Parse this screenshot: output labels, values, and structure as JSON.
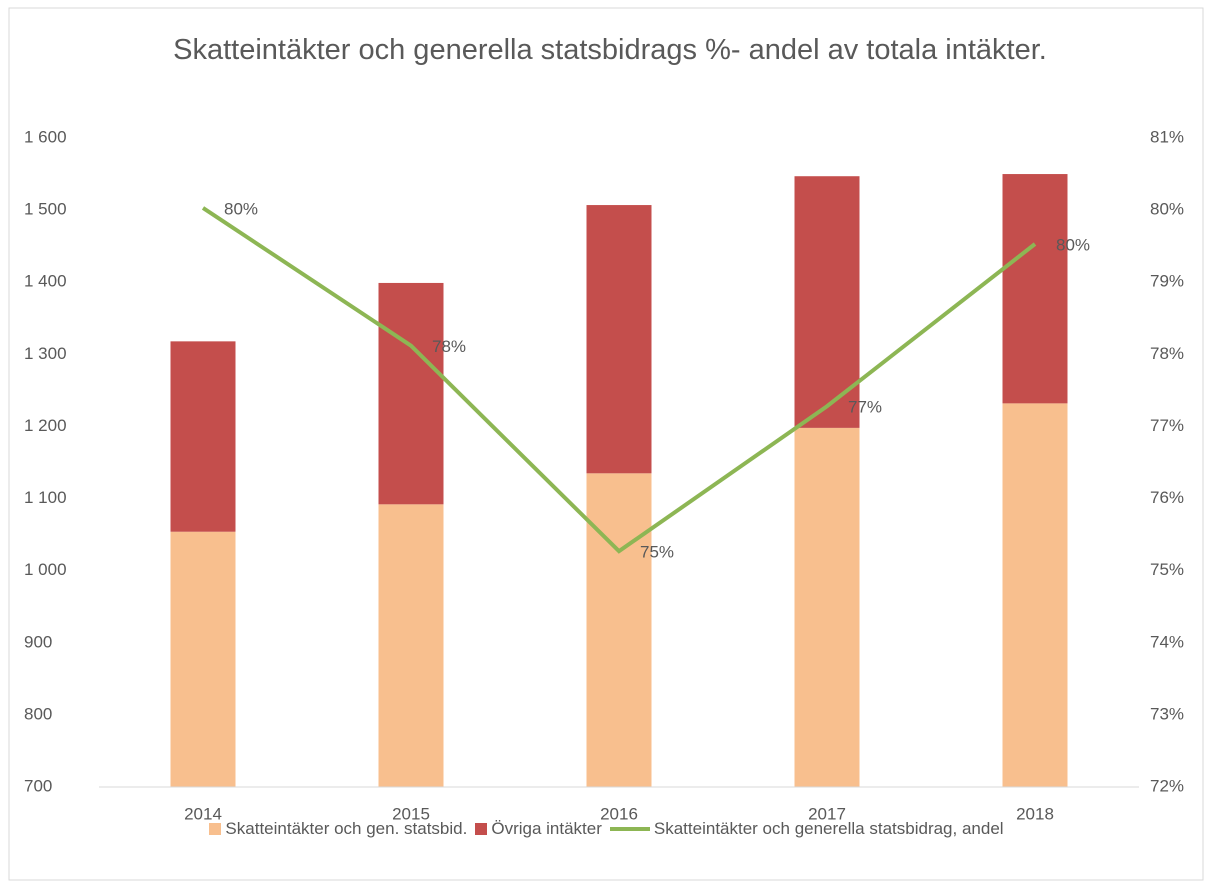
{
  "chart_data": {
    "type": "bar",
    "title": "Skatteintäkter och generella statsbidrags %- andel av totala intäkter.",
    "categories": [
      "2014",
      "2015",
      "2016",
      "2017",
      "2018"
    ],
    "stacked": true,
    "series": [
      {
        "name": "Skatteintäkter och gen. statsbid.",
        "type": "bar",
        "color": "#f8bf8e",
        "values": [
          1054,
          1092,
          1135,
          1198,
          1232
        ]
      },
      {
        "name": "Övriga intäkter",
        "type": "bar",
        "color": "#c44e4c",
        "values": [
          264,
          307,
          372,
          349,
          318
        ]
      },
      {
        "name": "Skatteintäkter och generella statsbidrag, andel",
        "type": "line",
        "axis": "y2",
        "color": "#8db654",
        "values": [
          80.03,
          78.12,
          75.27,
          77.28,
          79.53
        ],
        "value_labels": [
          "80%",
          "78%",
          "75%",
          "77%",
          "80%"
        ]
      }
    ],
    "ylim": [
      700,
      1600
    ],
    "yticks": [
      700,
      800,
      900,
      {
        "value": 1000,
        "label": "1 000"
      },
      {
        "value": 1100,
        "label": "1 100"
      },
      {
        "value": 1200,
        "label": "1 200"
      },
      {
        "value": 1300,
        "label": "1 300"
      },
      {
        "value": 1400,
        "label": "1 400"
      },
      {
        "value": 1500,
        "label": "1 500"
      },
      {
        "value": 1600,
        "label": "1 600"
      }
    ],
    "y2lim": [
      72,
      81
    ],
    "y2ticks": [
      {
        "value": 72,
        "label": "72%"
      },
      {
        "value": 73,
        "label": "73%"
      },
      {
        "value": 74,
        "label": "74%"
      },
      {
        "value": 75,
        "label": "75%"
      },
      {
        "value": 76,
        "label": "76%"
      },
      {
        "value": 77,
        "label": "77%"
      },
      {
        "value": 78,
        "label": "78%"
      },
      {
        "value": 79,
        "label": "79%"
      },
      {
        "value": 80,
        "label": "80%"
      },
      {
        "value": 81,
        "label": "81%"
      }
    ],
    "grid": false,
    "legend": "bottom"
  }
}
